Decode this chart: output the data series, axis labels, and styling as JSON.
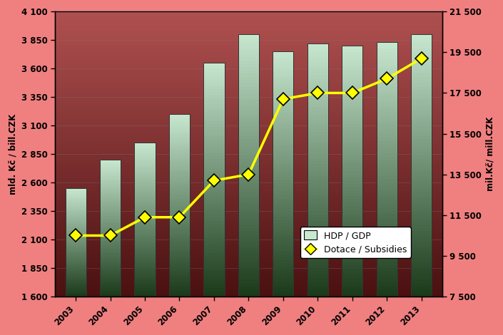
{
  "years": [
    2003,
    2004,
    2005,
    2006,
    2007,
    2008,
    2009,
    2010,
    2011,
    2012,
    2013
  ],
  "gdp": [
    2550,
    2800,
    2950,
    3200,
    3650,
    3900,
    3750,
    3820,
    3800,
    3830,
    3900
  ],
  "subsidies": [
    10500,
    10500,
    11400,
    11400,
    13200,
    13500,
    17200,
    17500,
    17500,
    18200,
    19200
  ],
  "left_ylim": [
    1600,
    4100
  ],
  "left_yticks": [
    1600,
    1850,
    2100,
    2350,
    2600,
    2850,
    3100,
    3350,
    3600,
    3850,
    4100
  ],
  "right_ylim": [
    7500,
    21500
  ],
  "right_yticks": [
    7500,
    9500,
    11500,
    13500,
    15500,
    17500,
    19500,
    21500
  ],
  "left_ylabel": "mld. Kč / bill.CZK",
  "right_ylabel": "mil.Kč/ mill.CZK",
  "line_color": "#ffff00",
  "marker_color": "#ffff00",
  "marker_edge_color": "#000000",
  "legend_labels": [
    "HDP / GDP",
    "Dotace / Subsidies"
  ],
  "figure_bg": "#f08080",
  "bar_color_light": "#c8e8d0",
  "bar_color_dark": "#1a3a1a"
}
